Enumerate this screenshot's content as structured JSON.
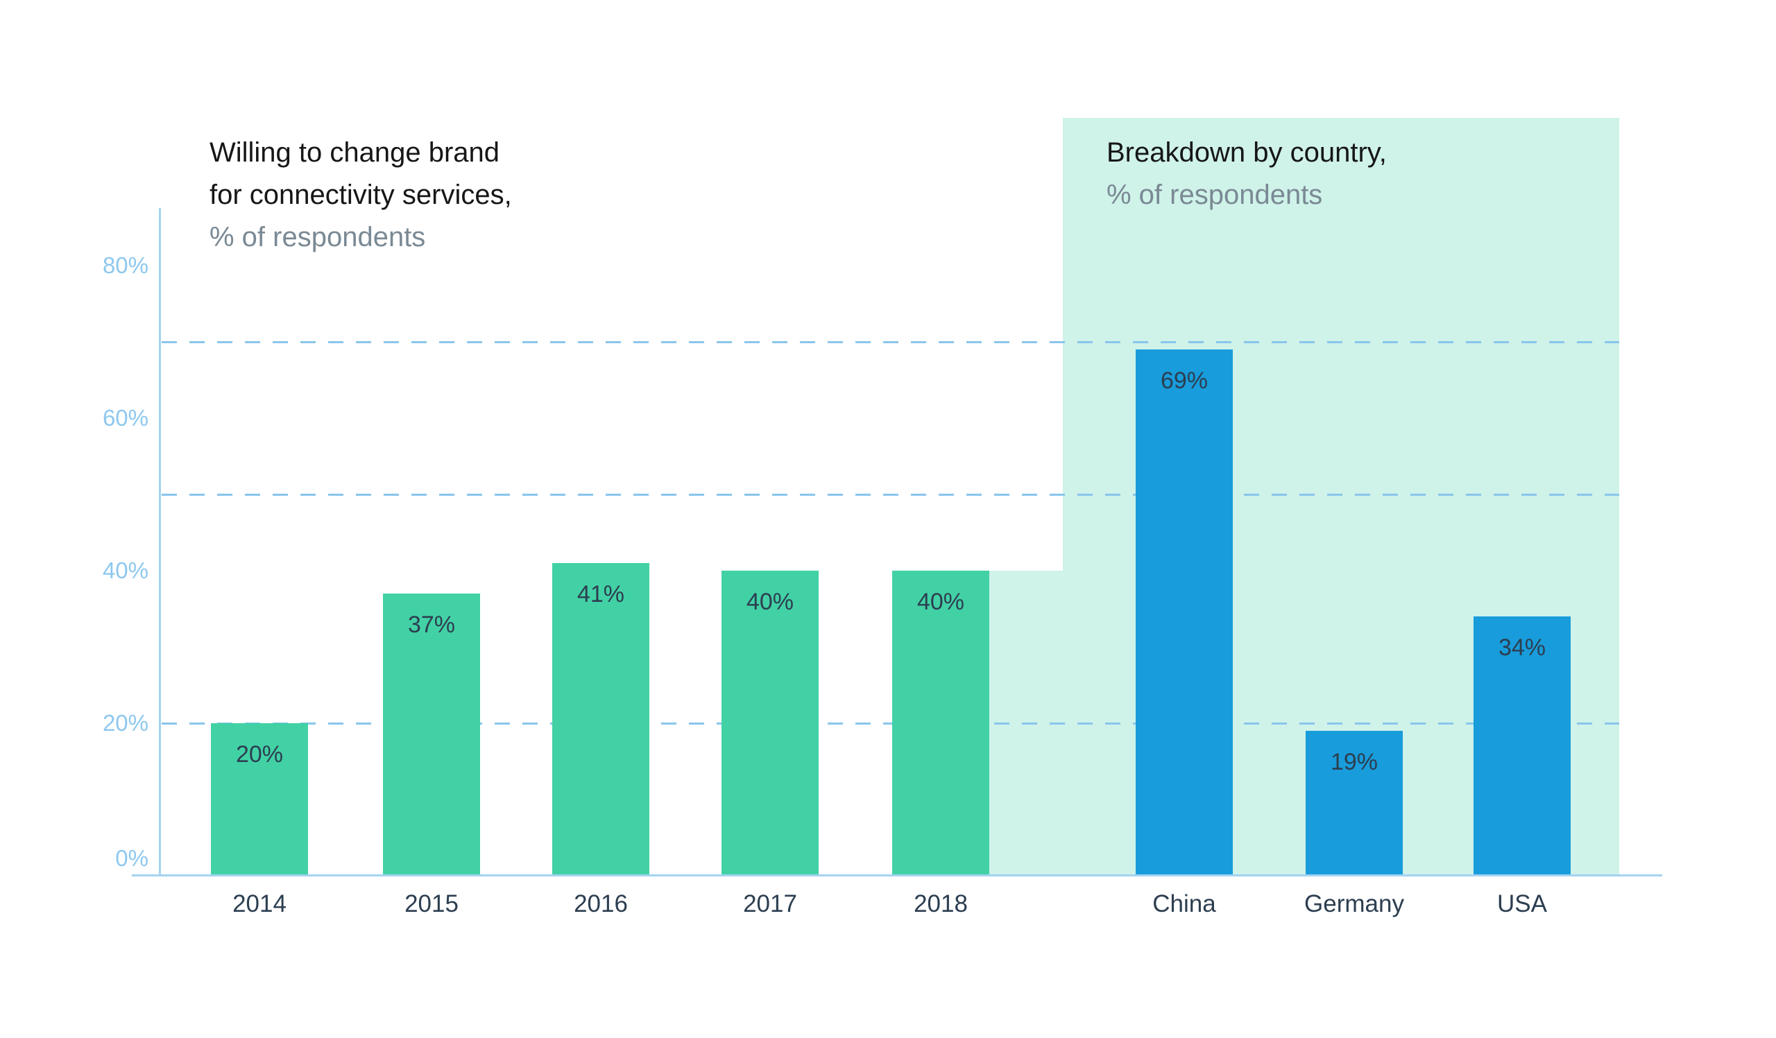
{
  "left_chart": {
    "title_lines": [
      "Willing to change brand",
      "for connectivity services,"
    ],
    "subtitle": "% of respondents"
  },
  "right_chart": {
    "title_line": "Breakdown by country,",
    "subtitle": "% of respondents"
  },
  "y_axis": {
    "tick_labels": [
      "0%",
      "20%",
      "40%",
      "60%",
      "80%"
    ],
    "tick_values": [
      0,
      20,
      40,
      60,
      80
    ]
  },
  "gridline_values": [
    20,
    50,
    70
  ],
  "colors": {
    "green_bar": "#42d1a5",
    "blue_bar": "#189cdb",
    "mint_panel": "#cff2e9",
    "axis_line": "#a3d3f1",
    "gridline": "#89c5ec",
    "tick_label": "#8ec8ee",
    "dark_text": "#2c3e50",
    "title_text": "#161616",
    "subtitle_text": "#7a8994"
  },
  "chart_data": {
    "type": "bar",
    "title": "Willing to change brand for connectivity services / Breakdown by country",
    "ylabel": "% of respondents",
    "xlabel": "",
    "ylim": [
      0,
      88
    ],
    "grid": "horizontal dashed lines at 20%, 50%, 70%",
    "legend_position": "none",
    "series": [
      {
        "name": "Willing to change brand for connectivity services, % of respondents",
        "color": "#42d1a5",
        "categories": [
          "2014",
          "2015",
          "2016",
          "2017",
          "2018"
        ],
        "values": [
          20,
          37,
          41,
          40,
          40
        ],
        "labels": [
          "20%",
          "37%",
          "41%",
          "40%",
          "40%"
        ]
      },
      {
        "name": "Breakdown by country, % of respondents",
        "color": "#189cdb",
        "categories": [
          "China",
          "Germany",
          "USA"
        ],
        "values": [
          69,
          19,
          34
        ],
        "labels": [
          "69%",
          "19%",
          "34%"
        ]
      }
    ]
  }
}
